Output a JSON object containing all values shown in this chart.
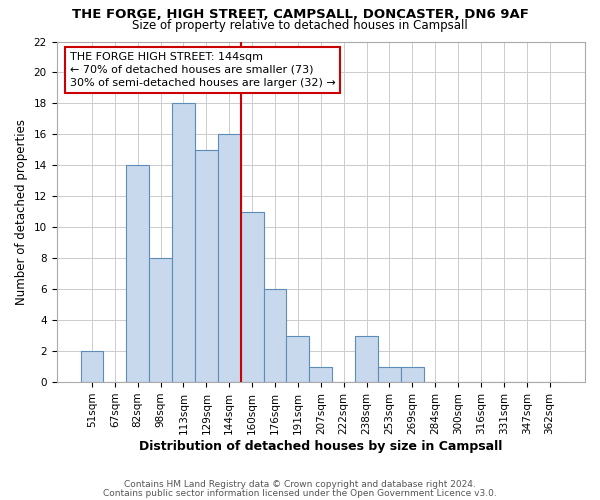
{
  "title": "THE FORGE, HIGH STREET, CAMPSALL, DONCASTER, DN6 9AF",
  "subtitle": "Size of property relative to detached houses in Campsall",
  "xlabel": "Distribution of detached houses by size in Campsall",
  "ylabel": "Number of detached properties",
  "bin_labels": [
    "51sqm",
    "67sqm",
    "82sqm",
    "98sqm",
    "113sqm",
    "129sqm",
    "144sqm",
    "160sqm",
    "176sqm",
    "191sqm",
    "207sqm",
    "222sqm",
    "238sqm",
    "253sqm",
    "269sqm",
    "284sqm",
    "300sqm",
    "316sqm",
    "331sqm",
    "347sqm",
    "362sqm"
  ],
  "bar_heights": [
    2,
    0,
    14,
    8,
    18,
    15,
    16,
    11,
    6,
    3,
    1,
    0,
    3,
    1,
    1,
    0,
    0,
    0,
    0,
    0,
    0
  ],
  "bar_color": "#c9d9ed",
  "bar_edge_color": "#5b8db8",
  "highlight_color": "#cc0000",
  "highlight_bar_idx": 6,
  "annotation_line1": "THE FORGE HIGH STREET: 144sqm",
  "annotation_line2": "← 70% of detached houses are smaller (73)",
  "annotation_line3": "30% of semi-detached houses are larger (32) →",
  "annotation_box_color": "#ffffff",
  "annotation_box_edge": "#cc0000",
  "footer_line1": "Contains HM Land Registry data © Crown copyright and database right 2024.",
  "footer_line2": "Contains public sector information licensed under the Open Government Licence v3.0.",
  "ylim": [
    0,
    22
  ],
  "yticks": [
    0,
    2,
    4,
    6,
    8,
    10,
    12,
    14,
    16,
    18,
    20,
    22
  ],
  "background_color": "#ffffff",
  "grid_color": "#cccccc",
  "title_fontsize": 9.5,
  "subtitle_fontsize": 8.5,
  "annotation_fontsize": 8.0,
  "tick_fontsize": 7.5,
  "ylabel_fontsize": 8.5,
  "xlabel_fontsize": 9.0,
  "footer_fontsize": 6.5,
  "footer_color": "#555555"
}
